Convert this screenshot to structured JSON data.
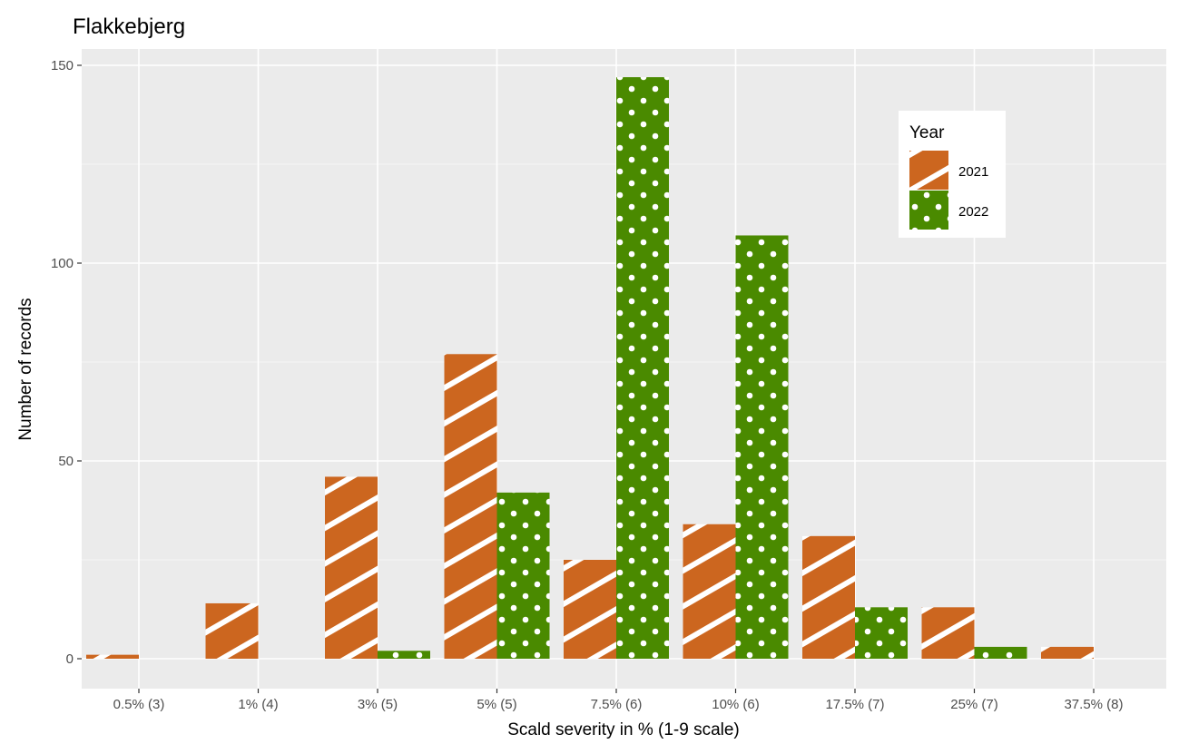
{
  "chart_data": {
    "type": "bar",
    "title": "Flakkebjerg",
    "xlabel": "Scald severity in % (1-9 scale)",
    "ylabel": "Number of records",
    "categories": [
      "0.5% (3)",
      "1% (4)",
      "3% (5)",
      "5% (5)",
      "7.5% (6)",
      "10% (6)",
      "17.5% (7)",
      "25% (7)",
      "37.5% (8)"
    ],
    "series": [
      {
        "name": "2021",
        "color": "#cc661f",
        "pattern": "stripes",
        "values": [
          1,
          14,
          46,
          77,
          25,
          34,
          31,
          13,
          3
        ]
      },
      {
        "name": "2022",
        "color": "#4a8a00",
        "pattern": "dots",
        "values": [
          0,
          0,
          2,
          42,
          147,
          107,
          13,
          3,
          0
        ]
      }
    ],
    "ylim": [
      0,
      150
    ],
    "yticks": [
      0,
      50,
      100,
      150
    ],
    "grid": true,
    "legend": {
      "title": "Year",
      "position": "top-right"
    }
  }
}
